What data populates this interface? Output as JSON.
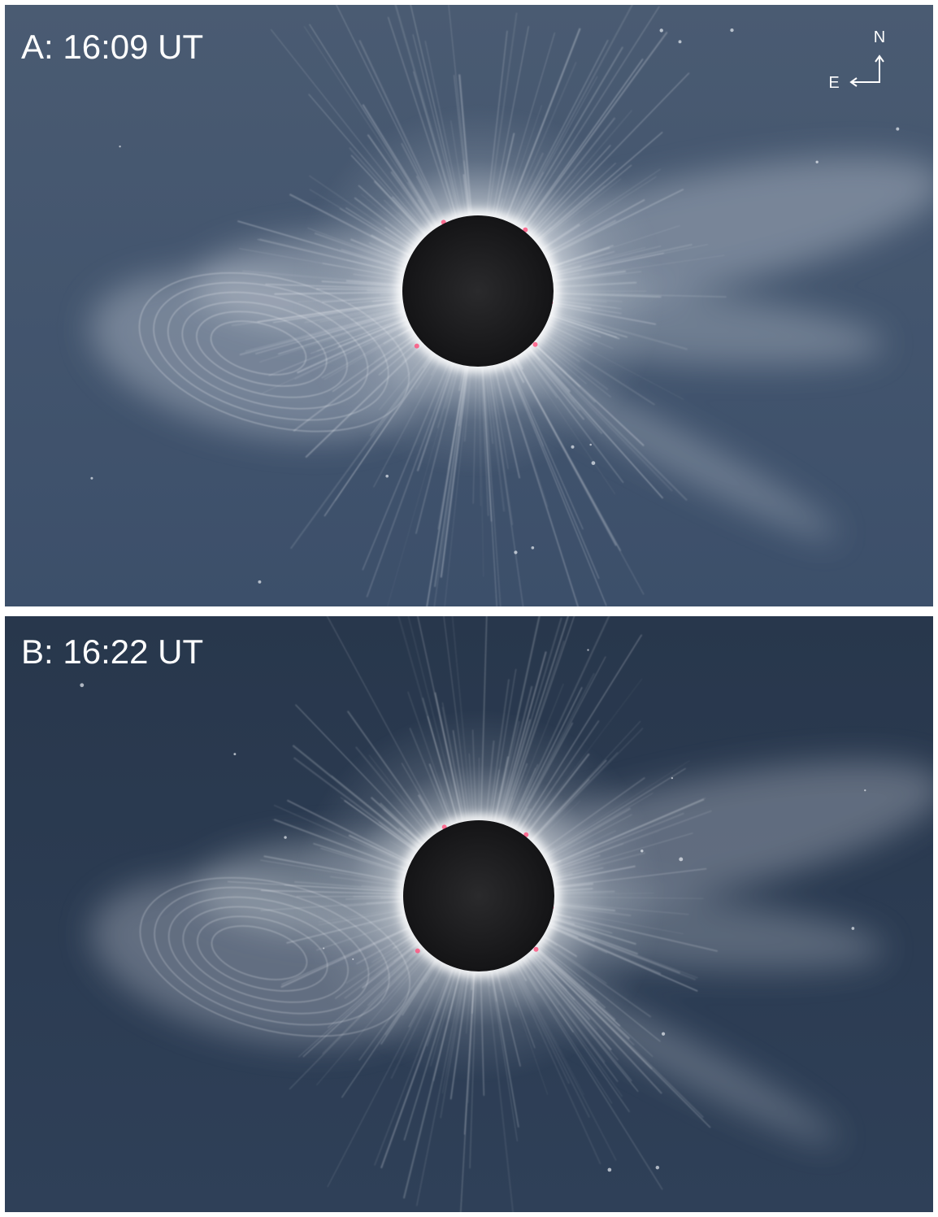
{
  "panels": [
    {
      "label": "A: 16:09 UT"
    },
    {
      "label": "B: 16:22 UT"
    }
  ],
  "compass": {
    "north": "N",
    "east": "E"
  }
}
